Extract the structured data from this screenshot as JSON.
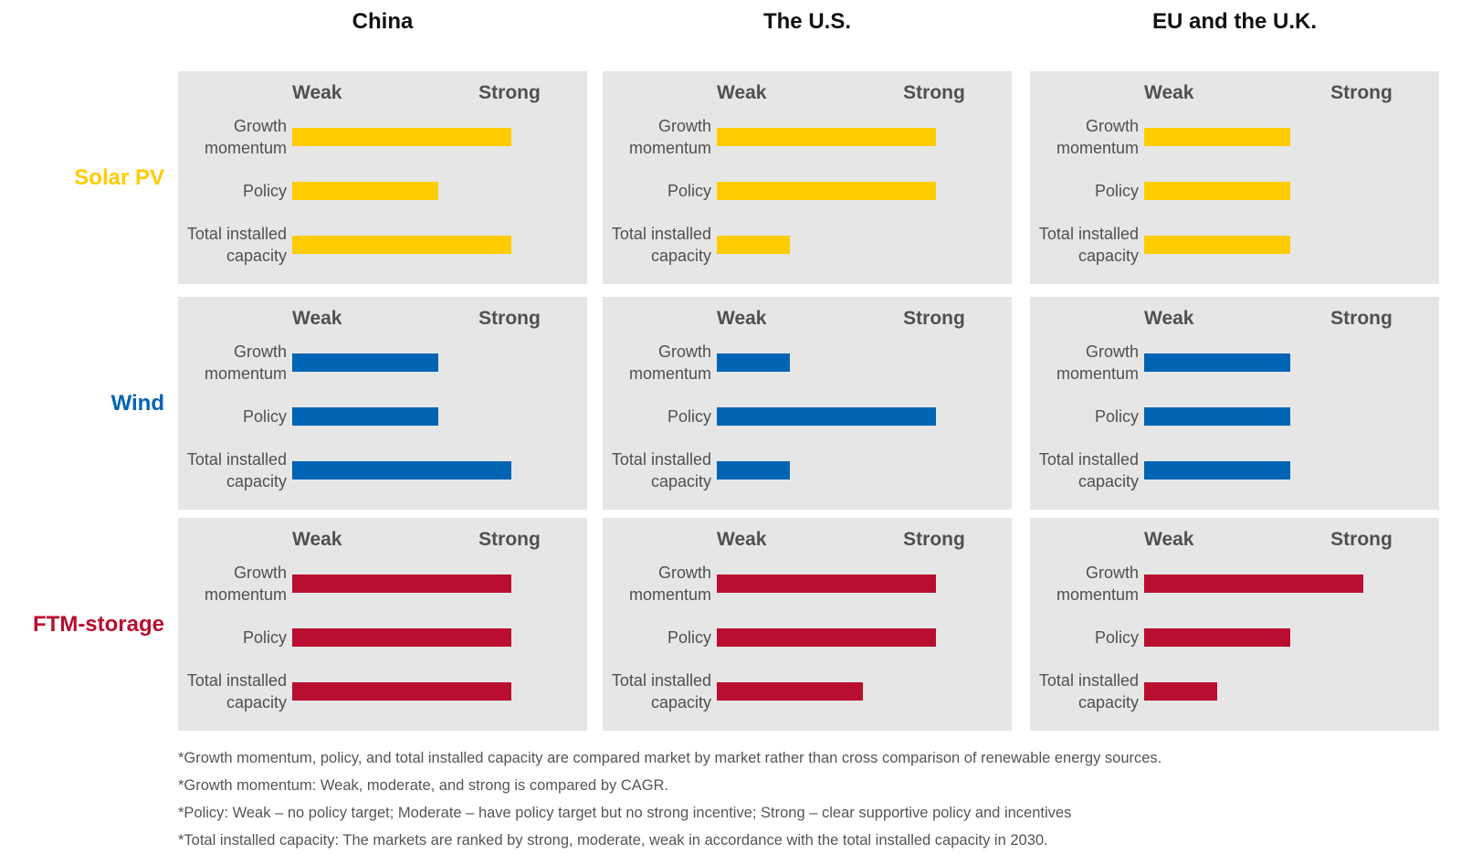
{
  "colors": {
    "Solar PV": "#ffcc00",
    "Wind": "#0064b4",
    "FTM-storage": "#b90e2f",
    "panel_bg": "#e6e6e6",
    "text_grey": "#505050"
  },
  "chart_data": {
    "type": "bar",
    "orientation": "horizontal",
    "scale": {
      "min_label": "Weak",
      "max_label": "Strong",
      "levels": [
        "weak",
        "moderate",
        "strong"
      ],
      "xlim": [
        0,
        3
      ]
    },
    "columns": [
      "China",
      "The U.S.",
      "EU and the U.K."
    ],
    "rows": [
      "Solar PV",
      "Wind",
      "FTM-storage"
    ],
    "metrics": [
      {
        "line1": "Growth",
        "line2": "momentum"
      },
      {
        "line1": "Policy",
        "line2": ""
      },
      {
        "line1": "Total installed",
        "line2": "capacity"
      }
    ],
    "values": {
      "Solar PV": {
        "China": [
          3,
          2,
          3
        ],
        "The U.S.": [
          3,
          3,
          1
        ],
        "EU and the U.K.": [
          2,
          2,
          2
        ]
      },
      "Wind": {
        "China": [
          2,
          2,
          3
        ],
        "The U.S.": [
          1,
          3,
          1
        ],
        "EU and the U.K.": [
          2,
          2,
          2
        ]
      },
      "FTM-storage": {
        "China": [
          3,
          3,
          3
        ],
        "The U.S.": [
          3,
          3,
          2
        ],
        "EU and the U.K.": [
          3,
          2,
          1
        ]
      }
    }
  },
  "footnotes": [
    "*Growth momentum, policy, and total installed capacity are compared market by market rather than cross comparison of renewable energy sources.",
    "*Growth momentum: Weak, moderate, and strong is compared by CAGR.",
    "*Policy: Weak – no policy target; Moderate – have policy target but no strong incentive; Strong – clear supportive policy and incentives",
    "*Total installed capacity: The markets are ranked by strong, moderate, weak in accordance with the total installed capacity in 2030."
  ]
}
